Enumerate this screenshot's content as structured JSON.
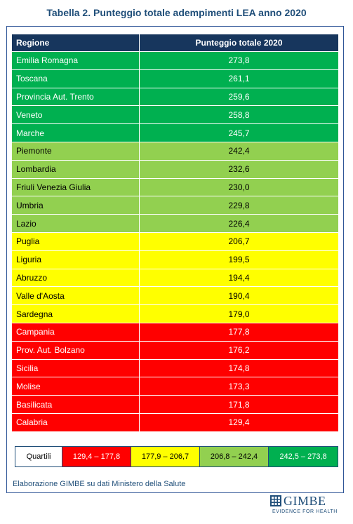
{
  "title": "Tabella 2.  Punteggio totale adempimenti LEA anno 2020",
  "table": {
    "headers": [
      "Regione",
      "Punteggio totale 2020"
    ],
    "rows": [
      {
        "regione": "Emilia Romagna",
        "punteggio": "273,8",
        "band": "dark-green"
      },
      {
        "regione": "Toscana",
        "punteggio": "261,1",
        "band": "dark-green"
      },
      {
        "regione": "Provincia Aut. Trento",
        "punteggio": "259,6",
        "band": "dark-green"
      },
      {
        "regione": "Veneto",
        "punteggio": "258,8",
        "band": "dark-green"
      },
      {
        "regione": "Marche",
        "punteggio": "245,7",
        "band": "dark-green"
      },
      {
        "regione": "Piemonte",
        "punteggio": "242,4",
        "band": "light-green"
      },
      {
        "regione": "Lombardia",
        "punteggio": "232,6",
        "band": "light-green"
      },
      {
        "regione": "Friuli Venezia Giulia",
        "punteggio": "230,0",
        "band": "light-green"
      },
      {
        "regione": "Umbria",
        "punteggio": "229,8",
        "band": "light-green"
      },
      {
        "regione": "Lazio",
        "punteggio": "226,4",
        "band": "light-green"
      },
      {
        "regione": "Puglia",
        "punteggio": "206,7",
        "band": "yellow"
      },
      {
        "regione": "Liguria",
        "punteggio": "199,5",
        "band": "yellow"
      },
      {
        "regione": "Abruzzo",
        "punteggio": "194,4",
        "band": "yellow"
      },
      {
        "regione": "Valle d'Aosta",
        "punteggio": "190,4",
        "band": "yellow"
      },
      {
        "regione": "Sardegna",
        "punteggio": "179,0",
        "band": "yellow"
      },
      {
        "regione": "Campania",
        "punteggio": "177,8",
        "band": "red"
      },
      {
        "regione": "Prov. Aut. Bolzano",
        "punteggio": "176,2",
        "band": "red"
      },
      {
        "regione": "Sicilia",
        "punteggio": "174,8",
        "band": "red"
      },
      {
        "regione": "Molise",
        "punteggio": "173,3",
        "band": "red"
      },
      {
        "regione": "Basilicata",
        "punteggio": "171,8",
        "band": "red"
      },
      {
        "regione": "Calabria",
        "punteggio": "129,4",
        "band": "red"
      }
    ]
  },
  "legend": {
    "label": "Quartili",
    "q1": "129,4 – 177,8",
    "q2": "177,9 – 206,7",
    "q3": "206,8 – 242,4",
    "q4": "242,5 – 273,8"
  },
  "colors": {
    "header": "#17365d",
    "dark_green": "#00b050",
    "light_green": "#92d050",
    "yellow": "#ffff00",
    "red": "#ff0000",
    "title": "#1f4e79"
  },
  "source": "Elaborazione GIMBE su dati Ministero della Salute",
  "logo": {
    "icon": "gimbe-grid-icon",
    "name": "GIMBE",
    "tagline": "EVIDENCE FOR HEALTH"
  }
}
